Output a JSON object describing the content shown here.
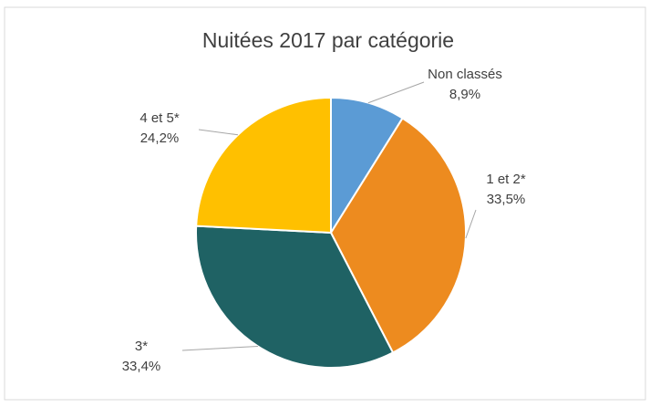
{
  "chart_data": {
    "type": "pie",
    "title": "Nuitées 2017 par catégorie",
    "categories": [
      "Non classés",
      "1 et 2*",
      "3*",
      "4 et 5*"
    ],
    "values": [
      8.9,
      33.5,
      33.4,
      24.2
    ],
    "value_labels": [
      "8,9%",
      "33,5%",
      "33,4%",
      "24,2%"
    ],
    "colors": [
      "#5b9bd5",
      "#ed8b1f",
      "#1f6264",
      "#ffc000"
    ]
  }
}
